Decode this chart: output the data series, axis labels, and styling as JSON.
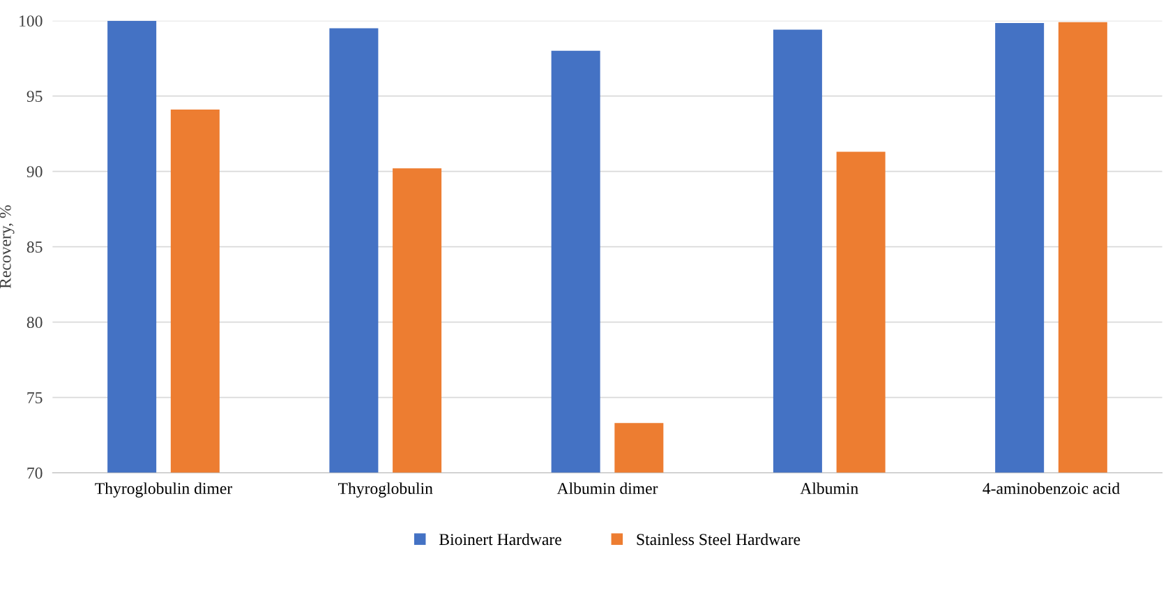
{
  "chart_data": {
    "type": "bar",
    "ylabel": "Recovery, %",
    "categories": [
      "Thyroglobulin dimer",
      "Thyroglobulin",
      "Albumin dimer",
      "Albumin",
      "4-aminobenzoic acid"
    ],
    "series": [
      {
        "name": "Bioinert Hardware",
        "color": "#4472c4",
        "values": [
          100,
          99.5,
          98.0,
          99.4,
          99.85
        ]
      },
      {
        "name": "Stainless Steel Hardware",
        "color": "#ed7d31",
        "values": [
          94.1,
          90.2,
          73.3,
          91.3,
          99.9
        ]
      }
    ],
    "ylim": [
      70,
      100
    ],
    "yticks": [
      70,
      75,
      80,
      85,
      90,
      95,
      100
    ],
    "grid": "y",
    "legend": "bottom"
  }
}
